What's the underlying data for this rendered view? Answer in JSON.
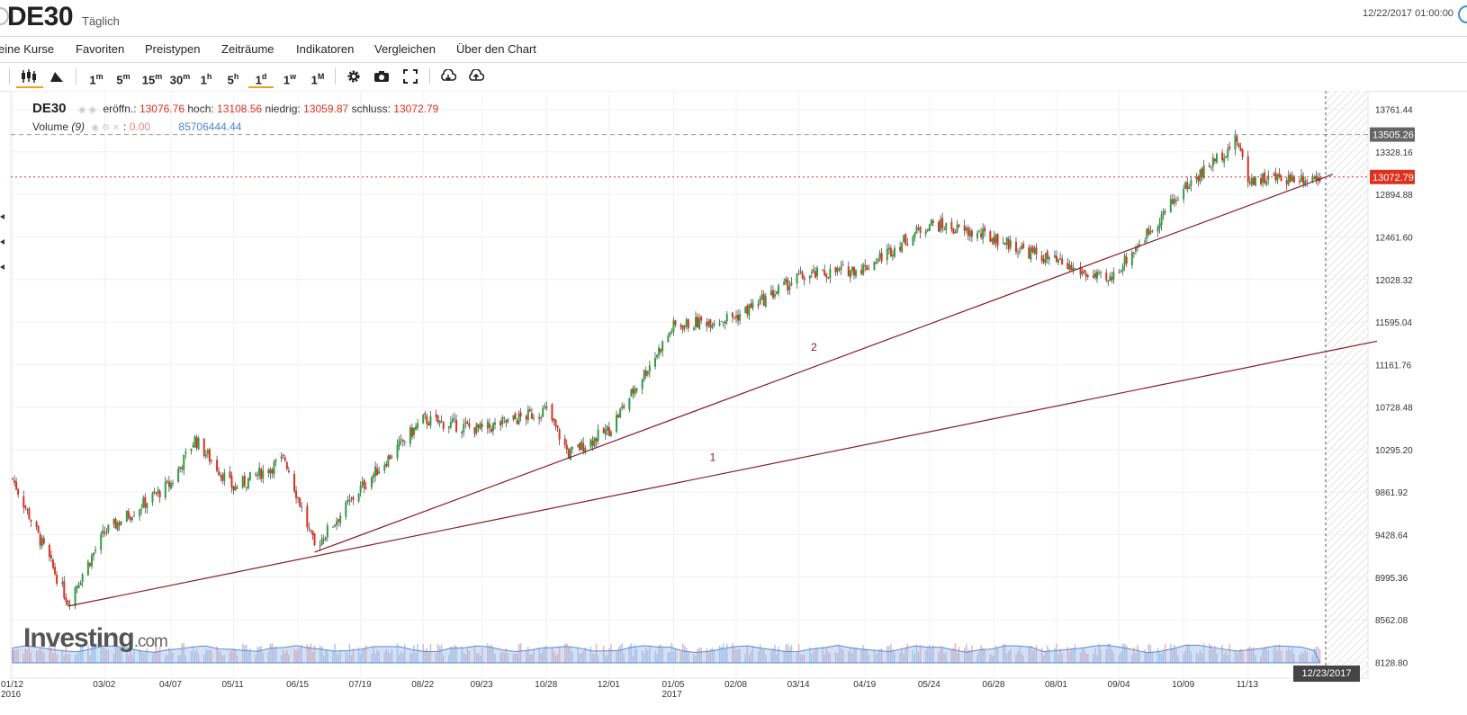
{
  "header": {
    "symbol": "DE30",
    "period": "Täglich",
    "datetime": "12/22/2017 01:00:00"
  },
  "menu": [
    "eine Kurse",
    "Favoriten",
    "Preistypen",
    "Zeiträume",
    "Indikatoren",
    "Vergleichen",
    "Über den Chart"
  ],
  "toolbar": {
    "chart_types": [
      "candlestick-icon",
      "area-chart-icon"
    ],
    "timeframes": [
      {
        "base": "1",
        "unit": "m"
      },
      {
        "base": "5",
        "unit": "m"
      },
      {
        "base": "15",
        "unit": "m"
      },
      {
        "base": "30",
        "unit": "m"
      },
      {
        "base": "1",
        "unit": "h"
      },
      {
        "base": "5",
        "unit": "h"
      },
      {
        "base": "1",
        "unit": "d"
      },
      {
        "base": "1",
        "unit": "w"
      },
      {
        "base": "1",
        "unit": "M"
      }
    ],
    "active_timeframe": "1d",
    "tools": [
      "gear-icon",
      "camera-icon",
      "fullscreen-icon",
      "download-icon",
      "upload-icon"
    ]
  },
  "legend": {
    "ticker": "DE30",
    "open_label": "eröffn.:",
    "open": "13076.76",
    "high_label": "hoch:",
    "high": "13108.56",
    "low_label": "niedrig:",
    "low": "13059.87",
    "close_label": "schluss:",
    "close": "13072.79",
    "volume_label": "Volume",
    "volume_param": "(9)",
    "volume_zero": "0.00",
    "volume_value": "85706444.44"
  },
  "watermark": {
    "brand": "Investing",
    "suffix": ".com"
  },
  "colors": {
    "up": "#2e9e3f",
    "down": "#e0301e",
    "trendline": "#8b1a2b",
    "volume": "#9fbde8",
    "last_price": "#e0301e"
  },
  "chart_data": {
    "type": "candlestick",
    "title": "DE30",
    "interval": "Täglich",
    "y_range": [
      7912.16,
      13978.08
    ],
    "y_ticks": [
      "13761.44",
      "13328.16",
      "12894.88",
      "12461.60",
      "12028.32",
      "11595.04",
      "11161.76",
      "10728.48",
      "10295.20",
      "9861.92",
      "9428.64",
      "8995.36",
      "8562.08",
      "8128.80"
    ],
    "y_tick_values": [
      13761.44,
      13328.16,
      12894.88,
      12461.6,
      12028.32,
      11595.04,
      11161.76,
      10728.48,
      10295.2,
      9861.92,
      9428.64,
      8995.36,
      8562.08,
      8128.8
    ],
    "x_ticks": [
      "01/12",
      "03/02",
      "04/07",
      "05/11",
      "06/15",
      "07/19",
      "08/22",
      "09/23",
      "10/28",
      "12/01",
      "01/05",
      "02/08",
      "03/14",
      "04/19",
      "05/24",
      "06/28",
      "08/01",
      "09/04",
      "10/09",
      "11/13"
    ],
    "x_year_labels": [
      {
        "tick": "01/12",
        "year": "2016"
      },
      {
        "tick": "01/05",
        "year": "2017"
      }
    ],
    "highlight_levels": [
      {
        "label": "13505.26",
        "value": 13505.26,
        "style": "dashed-gray"
      },
      {
        "label": "13072.79",
        "value": 13072.79,
        "style": "dotted-red"
      }
    ],
    "crosshair_date": "12/23/2017",
    "price_path": [
      {
        "date": "2016-01-12",
        "close": 10000
      },
      {
        "date": "2016-02-11",
        "close": 8750
      },
      {
        "date": "2016-03-02",
        "close": 9450
      },
      {
        "date": "2016-04-07",
        "close": 9950
      },
      {
        "date": "2016-04-20",
        "close": 10400
      },
      {
        "date": "2016-05-11",
        "close": 9900
      },
      {
        "date": "2016-06-08",
        "close": 10200
      },
      {
        "date": "2016-06-24",
        "close": 9300
      },
      {
        "date": "2016-07-19",
        "close": 9900
      },
      {
        "date": "2016-08-22",
        "close": 10600
      },
      {
        "date": "2016-09-23",
        "close": 10500
      },
      {
        "date": "2016-10-28",
        "close": 10700
      },
      {
        "date": "2016-11-09",
        "close": 10250
      },
      {
        "date": "2016-12-01",
        "close": 10500
      },
      {
        "date": "2017-01-05",
        "close": 11550
      },
      {
        "date": "2017-02-08",
        "close": 11650
      },
      {
        "date": "2017-03-14",
        "close": 12050
      },
      {
        "date": "2017-04-19",
        "close": 12150
      },
      {
        "date": "2017-05-24",
        "close": 12600
      },
      {
        "date": "2017-06-28",
        "close": 12450
      },
      {
        "date": "2017-08-01",
        "close": 12200
      },
      {
        "date": "2017-08-29",
        "close": 12000
      },
      {
        "date": "2017-09-04",
        "close": 12150
      },
      {
        "date": "2017-10-09",
        "close": 12950
      },
      {
        "date": "2017-11-07",
        "close": 13450
      },
      {
        "date": "2017-11-13",
        "close": 13050
      },
      {
        "date": "2017-12-22",
        "close": 13072.79
      }
    ],
    "trendlines": [
      {
        "label": "1",
        "from": {
          "date": "2016-02-11",
          "value": 8700
        },
        "to": {
          "date": "2018-01-22",
          "value": 11400
        }
      },
      {
        "label": "2",
        "from": {
          "date": "2016-06-24",
          "value": 9250
        },
        "to": {
          "date": "2017-12-29",
          "value": 13100
        }
      }
    ],
    "volume": {
      "label": "Volume (9)",
      "last_value": 85706444.44
    },
    "grid": true
  }
}
